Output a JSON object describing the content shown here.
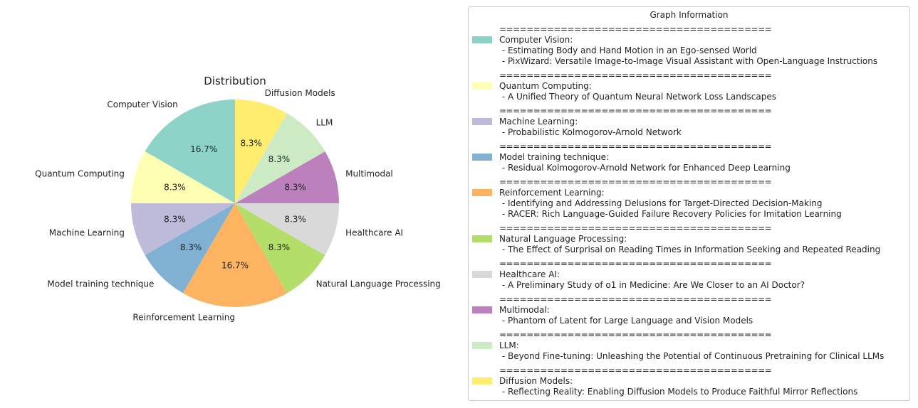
{
  "chart_data": {
    "type": "pie",
    "title": "Distribution",
    "slices": [
      {
        "label": "Computer Vision",
        "value": 2,
        "pct_label": "16.7%",
        "color": "#8dd3c7"
      },
      {
        "label": "Quantum Computing",
        "value": 1,
        "pct_label": "8.3%",
        "color": "#ffffb3"
      },
      {
        "label": "Machine Learning",
        "value": 1,
        "pct_label": "8.3%",
        "color": "#bebada"
      },
      {
        "label": "Model training technique",
        "value": 1,
        "pct_label": "8.3%",
        "color": "#80b1d3"
      },
      {
        "label": "Reinforcement Learning",
        "value": 2,
        "pct_label": "16.7%",
        "color": "#fdb462"
      },
      {
        "label": "Natural Language Processing",
        "value": 1,
        "pct_label": "8.3%",
        "color": "#b3de69"
      },
      {
        "label": "Healthcare AI",
        "value": 1,
        "pct_label": "8.3%",
        "color": "#d9d9d9"
      },
      {
        "label": "Multimodal",
        "value": 1,
        "pct_label": "8.3%",
        "color": "#bc80bd"
      },
      {
        "label": "LLM",
        "value": 1,
        "pct_label": "8.3%",
        "color": "#ccebc5"
      },
      {
        "label": "Diffusion Models",
        "value": 1,
        "pct_label": "8.3%",
        "color": "#ffed6f"
      }
    ],
    "start_angle_deg": 90,
    "direction": "counterclockwise",
    "legend_placement": "right"
  },
  "legend": {
    "title": "Graph Information",
    "separator": "========================================",
    "entries": [
      {
        "category": "Computer Vision:",
        "color": "#8dd3c7",
        "papers": [
          " - Estimating Body and Hand Motion in an Ego-sensed World",
          " - PixWizard: Versatile Image-to-Image Visual Assistant with Open-Language Instructions"
        ]
      },
      {
        "category": "Quantum Computing:",
        "color": "#ffffb3",
        "papers": [
          " - A Unified Theory of Quantum Neural Network Loss Landscapes"
        ]
      },
      {
        "category": "Machine Learning:",
        "color": "#bebada",
        "papers": [
          " - Probabilistic Kolmogorov-Arnold Network"
        ]
      },
      {
        "category": "Model training technique:",
        "color": "#80b1d3",
        "papers": [
          " - Residual Kolmogorov-Arnold Network for Enhanced Deep Learning"
        ]
      },
      {
        "category": "Reinforcement Learning:",
        "color": "#fdb462",
        "papers": [
          " - Identifying and Addressing Delusions for Target-Directed Decision-Making",
          " - RACER: Rich Language-Guided Failure Recovery Policies for Imitation Learning"
        ]
      },
      {
        "category": "Natural Language Processing:",
        "color": "#b3de69",
        "papers": [
          " - The Effect of Surprisal on Reading Times in Information Seeking and Repeated Reading"
        ]
      },
      {
        "category": "Healthcare AI:",
        "color": "#d9d9d9",
        "papers": [
          " - A Preliminary Study of o1 in Medicine: Are We Closer to an AI Doctor?"
        ]
      },
      {
        "category": "Multimodal:",
        "color": "#bc80bd",
        "papers": [
          " - Phantom of Latent for Large Language and Vision Models"
        ]
      },
      {
        "category": "LLM:",
        "color": "#ccebc5",
        "papers": [
          " - Beyond Fine-tuning: Unleashing the Potential of Continuous Pretraining for Clinical LLMs"
        ]
      },
      {
        "category": "Diffusion Models:",
        "color": "#ffed6f",
        "papers": [
          " - Reflecting Reality: Enabling Diffusion Models to Produce Faithful Mirror Reflections"
        ]
      }
    ]
  }
}
